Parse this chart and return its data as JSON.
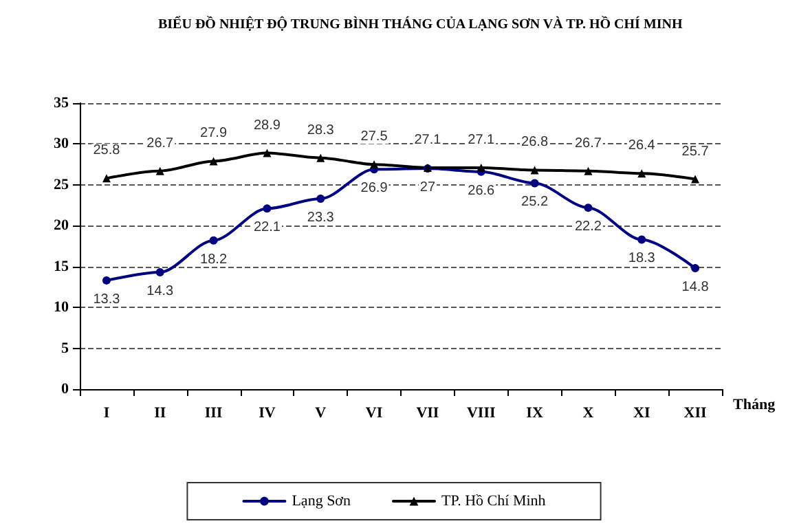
{
  "chart_data": {
    "type": "line",
    "title": "BIỂU ĐỒ NHIỆT ĐỘ TRUNG BÌNH THÁNG CỦA LẠNG SƠN VÀ TP. HỒ CHÍ MINH",
    "xlabel": "Tháng",
    "categories": [
      "I",
      "II",
      "III",
      "IV",
      "V",
      "VI",
      "VII",
      "VIII",
      "IX",
      "X",
      "XI",
      "XII"
    ],
    "series": [
      {
        "name": "Lạng Sơn",
        "color": "#000080",
        "marker": "circle",
        "values": [
          13.3,
          14.3,
          18.2,
          22.1,
          23.3,
          26.9,
          27,
          26.6,
          25.2,
          22.2,
          18.3,
          14.8
        ]
      },
      {
        "name": "TP. Hồ Chí Minh",
        "color": "#000000",
        "marker": "triangle",
        "values": [
          25.8,
          26.7,
          27.9,
          28.9,
          28.3,
          27.5,
          27.1,
          27.1,
          26.8,
          26.7,
          26.4,
          25.7
        ]
      }
    ],
    "ylim": [
      0,
      35
    ],
    "yticks": [
      0,
      5,
      10,
      15,
      20,
      25,
      30,
      35
    ],
    "grid": "y",
    "legend": "bottom",
    "data_labels": true
  }
}
